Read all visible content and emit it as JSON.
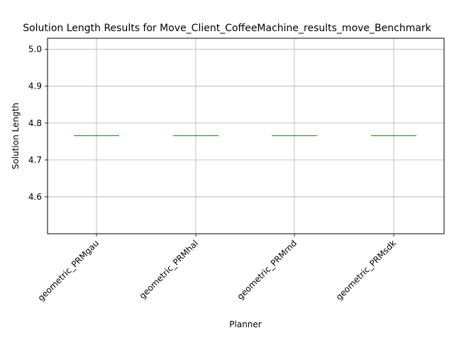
{
  "chart_data": {
    "type": "box",
    "title": "Solution Length Results for Move_Client_CoffeeMachine_results_move_Benchmark",
    "xlabel": "Planner",
    "ylabel": "Solution Length",
    "categories": [
      "geometric_PRMgau",
      "geometric_PRMhal",
      "geometric_PRMrnd",
      "geometric_PRMsdk"
    ],
    "series": [
      {
        "values": [
          4.766,
          4.766,
          4.766,
          4.766
        ]
      }
    ],
    "ylim": [
      4.5,
      5.03
    ],
    "yticks": [
      "4.6",
      "4.7",
      "4.8",
      "4.9",
      "5.0"
    ],
    "grid": true,
    "colors": {
      "median": "#2ca02c",
      "box": "#1f77b4",
      "grid": "#b0b0b0"
    }
  }
}
